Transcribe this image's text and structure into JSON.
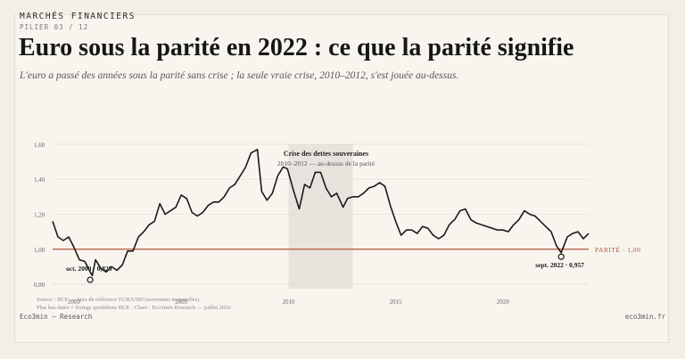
{
  "header": {
    "kicker": "MARCHÉS FINANCIERS",
    "pillar": "PILIER 03 / 12",
    "title": "Euro sous la parité en 2022 : ce que la parité signifie",
    "subtitle": "L'euro a passé des années sous la parité sans crise ; la seule vraie crise, 2010–2012, s'est jouée au-dessus."
  },
  "footer": {
    "source_line1": "Source : BCE — taux de référence EUR/USD (moyennes mensuelles)",
    "source_line2": "Plus bas datés = fixings quotidiens BCE · Chart : Eco3min Research — juillet 2026",
    "brand": "Eco3min — Research",
    "site": "eco3min.fr"
  },
  "colors": {
    "line": "#1a1a1a",
    "parity": "#b5553c",
    "band": "#d9d6d0",
    "grid": "#e3e0da"
  },
  "chart_data": {
    "type": "line",
    "title": "",
    "xlabel": "",
    "ylabel": "",
    "xlim": [
      1999,
      2024
    ],
    "ylim": [
      0.78,
      1.62
    ],
    "y_ticks": [
      0.8,
      1.0,
      1.2,
      1.4,
      1.6
    ],
    "y_tick_labels": [
      "0,80",
      "1,00",
      "1,20",
      "1,40",
      "1,60"
    ],
    "x_ticks": [
      2000,
      2005,
      2010,
      2015,
      2020
    ],
    "x_tick_labels": [
      "2000",
      "2005",
      "2010",
      "2015",
      "2020"
    ],
    "grid": true,
    "series": [
      {
        "x": [
          1999.0,
          1999.25,
          1999.5,
          1999.75,
          2000.0,
          2000.25,
          2000.5,
          2000.75,
          2000.85,
          2001.0,
          2001.25,
          2001.5,
          2001.75,
          2002.0,
          2002.25,
          2002.5,
          2002.75,
          2003.0,
          2003.25,
          2003.5,
          2003.75,
          2004.0,
          2004.25,
          2004.5,
          2004.75,
          2005.0,
          2005.25,
          2005.5,
          2005.75,
          2006.0,
          2006.25,
          2006.5,
          2006.75,
          2007.0,
          2007.25,
          2007.5,
          2007.75,
          2008.0,
          2008.25,
          2008.55,
          2008.75,
          2009.0,
          2009.25,
          2009.5,
          2009.75,
          2009.95,
          2010.25,
          2010.5,
          2010.75,
          2011.0,
          2011.25,
          2011.5,
          2011.75,
          2012.0,
          2012.25,
          2012.55,
          2012.75,
          2013.0,
          2013.25,
          2013.5,
          2013.75,
          2014.0,
          2014.25,
          2014.5,
          2014.75,
          2015.0,
          2015.25,
          2015.5,
          2015.75,
          2016.0,
          2016.25,
          2016.5,
          2016.75,
          2017.0,
          2017.25,
          2017.5,
          2017.75,
          2018.0,
          2018.25,
          2018.5,
          2018.75,
          2019.0,
          2019.25,
          2019.5,
          2019.75,
          2020.0,
          2020.25,
          2020.5,
          2020.75,
          2021.0,
          2021.25,
          2021.5,
          2021.75,
          2022.0,
          2022.25,
          2022.5,
          2022.72,
          2023.0,
          2023.25,
          2023.5,
          2023.75,
          2024.0
        ],
        "y": [
          1.16,
          1.07,
          1.05,
          1.07,
          1.01,
          0.94,
          0.93,
          0.87,
          0.85,
          0.94,
          0.89,
          0.87,
          0.9,
          0.88,
          0.91,
          0.99,
          0.99,
          1.07,
          1.1,
          1.14,
          1.16,
          1.26,
          1.2,
          1.22,
          1.24,
          1.31,
          1.29,
          1.21,
          1.19,
          1.21,
          1.25,
          1.27,
          1.27,
          1.3,
          1.35,
          1.37,
          1.42,
          1.47,
          1.55,
          1.57,
          1.33,
          1.28,
          1.32,
          1.42,
          1.47,
          1.46,
          1.33,
          1.23,
          1.37,
          1.35,
          1.44,
          1.44,
          1.35,
          1.3,
          1.32,
          1.24,
          1.29,
          1.3,
          1.3,
          1.32,
          1.35,
          1.36,
          1.38,
          1.36,
          1.25,
          1.16,
          1.08,
          1.11,
          1.11,
          1.09,
          1.13,
          1.12,
          1.08,
          1.06,
          1.08,
          1.14,
          1.17,
          1.22,
          1.23,
          1.17,
          1.15,
          1.14,
          1.13,
          1.12,
          1.11,
          1.11,
          1.1,
          1.14,
          1.17,
          1.22,
          1.2,
          1.19,
          1.16,
          1.13,
          1.1,
          1.02,
          0.98,
          1.07,
          1.09,
          1.1,
          1.06,
          1.09
        ]
      }
    ],
    "reference_line": {
      "y": 1.0,
      "label": "PARITÉ · 1,00"
    },
    "shaded_band": {
      "x_start": 2010.0,
      "x_end": 2013.0,
      "title": "Crise des dettes souveraines",
      "subtitle": "2010–2012 — au-dessus de la parité"
    },
    "annotations": [
      {
        "x": 2000.75,
        "y": 0.825,
        "label": "oct. 2000 · 0,825"
      },
      {
        "x": 2022.72,
        "y": 0.957,
        "label": "sept. 2022 · 0,957"
      }
    ]
  }
}
